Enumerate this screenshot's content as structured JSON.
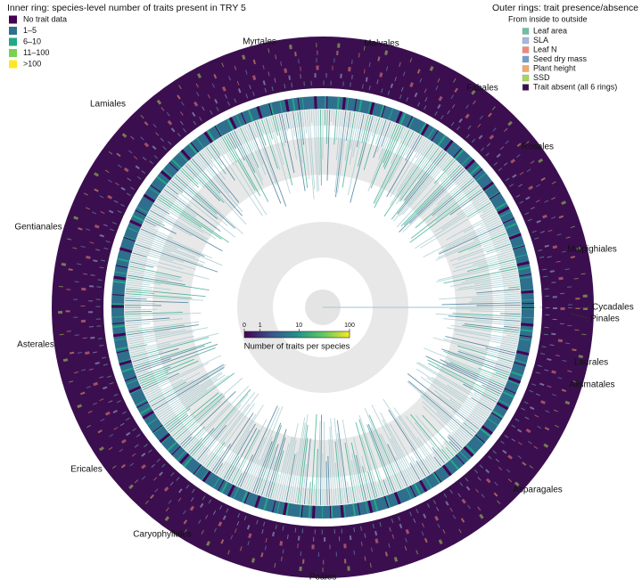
{
  "inner_legend": {
    "title": "Inner ring: species-level number of traits present in TRY 5",
    "items": [
      {
        "label": "No trait data",
        "color": "#440154"
      },
      {
        "label": "1–5",
        "color": "#2f6f8e"
      },
      {
        "label": "6–10",
        "color": "#22a884"
      },
      {
        "label": "11–100",
        "color": "#7ad151"
      },
      {
        "label": ">100",
        "color": "#fde725"
      }
    ]
  },
  "outer_legend": {
    "title": "Outer rings: trait presence/absence",
    "subtitle": "From inside to outside",
    "items": [
      {
        "label": "Leaf area",
        "color": "#66c2a5"
      },
      {
        "label": "SLA",
        "color": "#a6b8e0"
      },
      {
        "label": "Leaf N",
        "color": "#f4877a"
      },
      {
        "label": "Seed dry mass",
        "color": "#6f9fd0"
      },
      {
        "label": "Plant height",
        "color": "#f5a86a"
      },
      {
        "label": "SSD",
        "color": "#a6d854"
      },
      {
        "label": "Trait absent (all 6 rings)",
        "color": "#3b0f4f"
      }
    ]
  },
  "clade_labels": [
    "Myrtales",
    "Malvales",
    "Fabales",
    "Rosales",
    "Malpighiales",
    "Cycadales",
    "Pinales",
    "Laurales",
    "Alismatales",
    "Asparagales",
    "Poales",
    "Caryophyllales",
    "Ericales",
    "Asterales",
    "Gentianales",
    "Lamiales"
  ],
  "chart_data": {
    "type": "colorbar",
    "x_label": "Number of traits per species",
    "xlim": [
      0,
      100
    ],
    "xticks": [
      0,
      1,
      10,
      100
    ],
    "scale": "log1p",
    "colors": [
      "#440154",
      "#3b528b",
      "#21918c",
      "#5ec962",
      "#fde725"
    ]
  }
}
